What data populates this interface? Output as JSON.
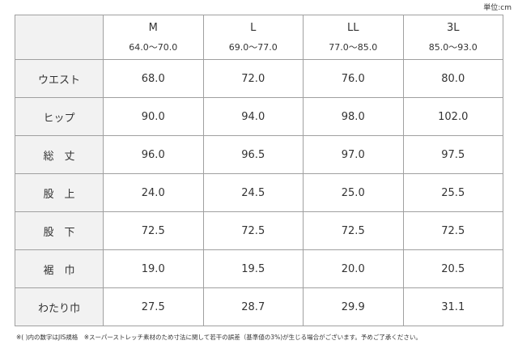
{
  "unit": "単位:cm",
  "header": {
    "sizes": [
      "M",
      "L",
      "LL",
      "3L"
    ],
    "ranges": [
      "64.0～70.0",
      "69.0～77.0",
      "77.0～85.0",
      "85.0～93.0"
    ]
  },
  "table": {
    "rows": [
      {
        "label": "ウエスト",
        "cells": [
          "68.0",
          "72.0",
          "76.0",
          "80.0"
        ]
      },
      {
        "label": "ヒップ",
        "cells": [
          "90.0",
          "94.0",
          "98.0",
          "102.0"
        ]
      },
      {
        "label": "総　丈",
        "cells": [
          "96.0",
          "96.5",
          "97.0",
          "97.5"
        ]
      },
      {
        "label": "股　上",
        "cells": [
          "24.0",
          "24.5",
          "25.0",
          "25.5"
        ]
      },
      {
        "label": "股　下",
        "cells": [
          "72.5",
          "72.5",
          "72.5",
          "72.5"
        ]
      },
      {
        "label": "裾　巾",
        "cells": [
          "19.0",
          "19.5",
          "20.0",
          "20.5"
        ]
      },
      {
        "label": "わたり巾",
        "cells": [
          "27.5",
          "28.7",
          "29.9",
          "31.1"
        ]
      }
    ]
  },
  "note": "※( )内の数字はJIS規格　※スーパーストレッチ素材のため寸法に関して若干の誤差（基準値の3%)が生じる場合がございます。予めご了承ください。"
}
